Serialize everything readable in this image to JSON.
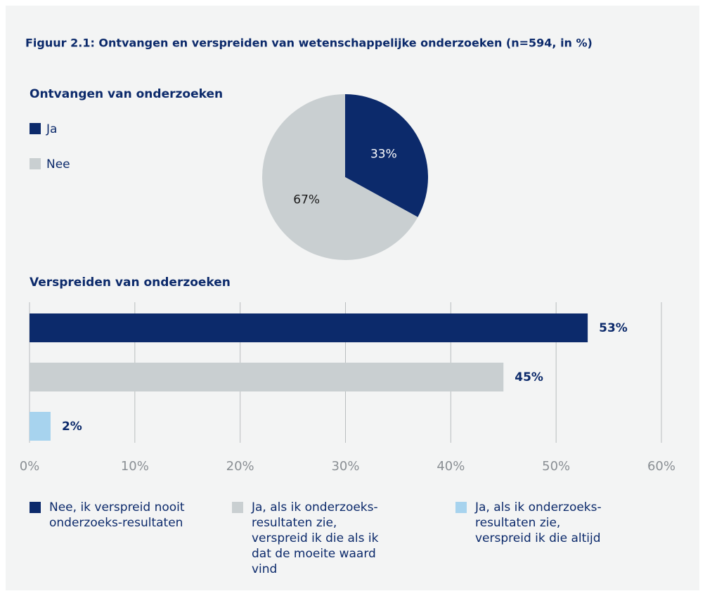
{
  "title": "Figuur 2.1: Ontvangen en verspreiden van wetenschappelijke onderzoeken (n=594, in %)",
  "chart_data": [
    {
      "type": "pie",
      "title": "Ontvangen van onderzoeken",
      "categories": [
        "Ja",
        "Nee"
      ],
      "values": [
        33,
        67
      ],
      "value_labels": [
        "33%",
        "67%"
      ],
      "colors": [
        "#0c2a6b",
        "#c9cfd1"
      ],
      "label_colors": [
        "#ffffff",
        "#1a1a1a"
      ]
    },
    {
      "type": "bar",
      "orientation": "horizontal",
      "title": "Verspreiden van onderzoeken",
      "series": [
        {
          "name": "Nee, ik verspreid nooit onderzoeks-resultaten",
          "color": "#0c2a6b",
          "values": [
            53
          ],
          "value_labels": [
            "53%"
          ]
        },
        {
          "name": "Ja, als ik onderzoeks-resultaten zie, verspreid ik die als ik dat de moeite waard vind",
          "color": "#c9cfd1",
          "values": [
            45
          ],
          "value_labels": [
            "45%"
          ]
        },
        {
          "name": "Ja, als ik onderzoeks-resultaten zie, verspreid ik die altijd",
          "color": "#a7d3ee",
          "values": [
            2
          ],
          "value_labels": [
            "2%"
          ]
        }
      ],
      "xlim": [
        0,
        60
      ],
      "xticks": [
        {
          "value": 0,
          "label": "0%"
        },
        {
          "value": 10,
          "label": "10%"
        },
        {
          "value": 20,
          "label": "20%"
        },
        {
          "value": 30,
          "label": "30%"
        },
        {
          "value": 40,
          "label": "40%"
        },
        {
          "value": 50,
          "label": "50%"
        },
        {
          "value": 60,
          "label": "60%"
        }
      ],
      "grid": true
    }
  ]
}
